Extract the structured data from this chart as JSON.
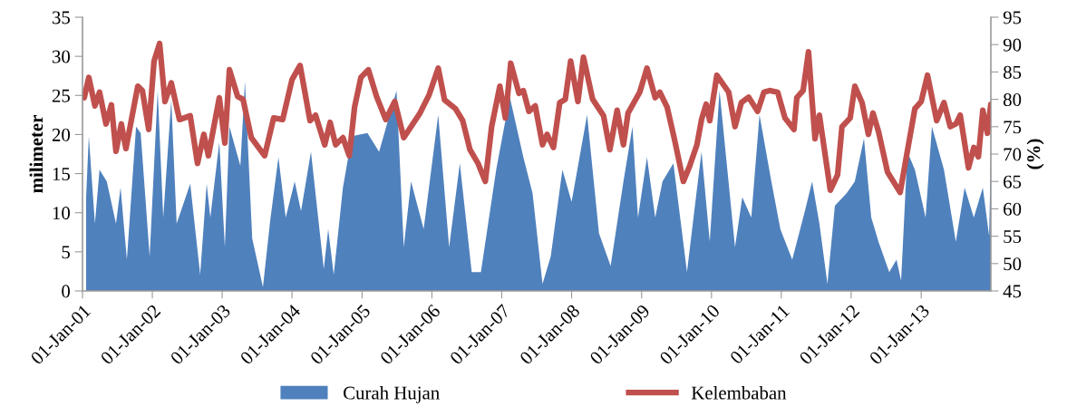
{
  "chart_data": {
    "type": "area",
    "ylabel": "milimeter",
    "y2label": "(%)",
    "xlim": [
      "2001-01-01",
      "2013-12-31"
    ],
    "ylim": [
      0,
      35
    ],
    "yticks": [
      0,
      5,
      10,
      15,
      20,
      25,
      30,
      35
    ],
    "y2lim": [
      45,
      95
    ],
    "y2ticks": [
      45,
      50,
      55,
      60,
      65,
      70,
      75,
      80,
      85,
      90,
      95
    ],
    "xticks": [
      {
        "value": "2001-01-01",
        "label": "01-Jan-01"
      },
      {
        "value": "2002-01-01",
        "label": "01-Jan-02"
      },
      {
        "value": "2003-01-01",
        "label": "01-Jan-03"
      },
      {
        "value": "2004-01-01",
        "label": "01-Jan-04"
      },
      {
        "value": "2005-01-01",
        "label": "01-Jan-05"
      },
      {
        "value": "2006-01-01",
        "label": "01-Jan-06"
      },
      {
        "value": "2007-01-01",
        "label": "01-Jan-07"
      },
      {
        "value": "2008-01-01",
        "label": "01-Jan-08"
      },
      {
        "value": "2009-01-01",
        "label": "01-Jan-09"
      },
      {
        "value": "2010-01-01",
        "label": "01-Jan-10"
      },
      {
        "value": "2011-01-01",
        "label": "01-Jan-11"
      },
      {
        "value": "2012-01-01",
        "label": "01-Jan-12"
      },
      {
        "value": "2013-01-01",
        "label": "01-Jan-13"
      }
    ],
    "legend": "bottom",
    "grid": false,
    "series": [
      {
        "name": "Curah Hujan",
        "color": "#4f81bd",
        "x": [
          "2001-01-20",
          "2001-02-03",
          "2001-03-07",
          "2001-03-31",
          "2001-05-08",
          "2001-06-25",
          "2001-07-19",
          "2001-08-21",
          "2001-10-08",
          "2001-11-01",
          "2001-12-18",
          "2002-01-29",
          "2002-02-27",
          "2002-04-10",
          "2002-05-08",
          "2002-07-18",
          "2002-09-08",
          "2002-10-12",
          "2002-10-31",
          "2002-12-17",
          "2003-01-15",
          "2003-02-08",
          "2003-04-06",
          "2003-04-30",
          "2003-06-07",
          "2003-08-02",
          "2003-09-09",
          "2003-10-22",
          "2003-11-29",
          "2004-01-15",
          "2004-02-17",
          "2004-04-09",
          "2004-06-15",
          "2004-07-08",
          "2004-08-06",
          "2004-09-23",
          "2004-11-09",
          "2005-01-29",
          "2005-03-31",
          "2005-06-30",
          "2005-08-07",
          "2005-09-14",
          "2005-11-19",
          "2006-02-03",
          "2006-04-01",
          "2006-05-27",
          "2006-07-28",
          "2006-09-14",
          "2006-12-03",
          "2007-02-12",
          "2007-04-24",
          "2007-06-11",
          "2007-08-02",
          "2007-09-14",
          "2007-11-14",
          "2008-01-01",
          "2008-03-22",
          "2008-05-23",
          "2008-07-23",
          "2008-09-28",
          "2008-11-14",
          "2008-12-13",
          "2009-01-29",
          "2009-03-13",
          "2009-04-20",
          "2009-06-16",
          "2009-08-26",
          "2009-10-12",
          "2009-11-10",
          "2009-12-23",
          "2010-02-12",
          "2010-05-04",
          "2010-06-11",
          "2010-07-28",
          "2010-09-09",
          "2010-11-10",
          "2010-12-27",
          "2011-02-27",
          "2011-05-04",
          "2011-06-11",
          "2011-07-19",
          "2011-08-30",
          "2011-10-08",
          "2011-12-08",
          "2012-01-20",
          "2012-03-08",
          "2012-04-15",
          "2012-05-23",
          "2012-07-18",
          "2012-08-25",
          "2012-09-18",
          "2012-10-21",
          "2012-11-29",
          "2013-01-24",
          "2013-02-26",
          "2013-04-30",
          "2013-07-01",
          "2013-08-16",
          "2013-10-03",
          "2013-11-19",
          "2013-12-22",
          "2013-12-31"
        ],
        "values": [
          12,
          19.8,
          8.6,
          15.5,
          14,
          8.6,
          13.2,
          4,
          21,
          20.2,
          4.4,
          25.6,
          9.4,
          24.4,
          8.6,
          13.7,
          2.1,
          13.7,
          9.4,
          19,
          5.6,
          21,
          16,
          26.8,
          6.7,
          0.5,
          9,
          17.1,
          9.4,
          14,
          10.2,
          17.8,
          2.8,
          7.9,
          2.1,
          13.2,
          19.8,
          20.2,
          17.8,
          25.6,
          5.6,
          14,
          7.9,
          22.5,
          5.6,
          16.3,
          2.4,
          2.4,
          15.5,
          24.8,
          17.1,
          12.5,
          0.9,
          4.4,
          15.5,
          11.4,
          22.5,
          7.4,
          3.2,
          14,
          21,
          9.4,
          17.1,
          9.4,
          14,
          16.3,
          2.4,
          12,
          17.8,
          6.3,
          25.6,
          5.6,
          12,
          9.4,
          22.5,
          14,
          7.9,
          4,
          10.2,
          14,
          8.6,
          0.9,
          10.9,
          12.5,
          14,
          19.5,
          9.4,
          6.3,
          2.4,
          4,
          1.3,
          17.8,
          15.5,
          9.4,
          21,
          15.5,
          6.3,
          13.2,
          9.4,
          13.2,
          7,
          17.8
        ]
      },
      {
        "name": "Kelembaban",
        "type": "line",
        "axis": "y2",
        "color": "#c0504d",
        "line_style": "solid",
        "x": [
          "2001-01-10",
          "2001-02-03",
          "2001-03-07",
          "2001-03-31",
          "2001-05-04",
          "2001-06-01",
          "2001-06-25",
          "2001-07-23",
          "2001-08-16",
          "2001-10-17",
          "2001-11-10",
          "2001-12-13",
          "2002-01-10",
          "2002-02-08",
          "2002-03-08",
          "2002-04-10",
          "2002-05-23",
          "2002-07-18",
          "2002-08-25",
          "2002-09-27",
          "2002-10-21",
          "2002-12-17",
          "2003-01-15",
          "2003-02-08",
          "2003-03-23",
          "2003-04-20",
          "2003-06-02",
          "2003-08-11",
          "2003-09-27",
          "2003-11-13",
          "2004-01-01",
          "2004-02-12",
          "2004-04-04",
          "2004-05-03",
          "2004-06-20",
          "2004-07-18",
          "2004-08-16",
          "2004-09-23",
          "2004-10-26",
          "2004-11-23",
          "2004-12-26",
          "2005-02-03",
          "2005-03-18",
          "2005-05-05",
          "2005-06-21",
          "2005-08-07",
          "2005-09-14",
          "2005-10-31",
          "2005-12-17",
          "2006-02-03",
          "2006-03-08",
          "2006-05-04",
          "2006-06-11",
          "2006-07-19",
          "2006-08-30",
          "2006-10-07",
          "2006-11-09",
          "2006-12-22",
          "2007-01-20",
          "2007-02-17",
          "2007-04-01",
          "2007-04-24",
          "2007-05-23",
          "2007-06-25",
          "2007-08-02",
          "2007-08-26",
          "2007-09-28",
          "2007-10-31",
          "2007-11-29",
          "2007-12-27",
          "2008-02-03",
          "2008-03-03",
          "2008-04-20",
          "2008-06-16",
          "2008-07-19",
          "2008-08-26",
          "2008-09-28",
          "2008-10-22",
          "2008-12-22",
          "2009-01-29",
          "2009-03-13",
          "2009-04-06",
          "2009-05-14",
          "2009-06-21",
          "2009-08-07",
          "2009-09-09",
          "2009-10-17",
          "2009-11-10",
          "2009-12-04",
          "2009-12-23",
          "2010-01-29",
          "2010-04-01",
          "2010-05-04",
          "2010-06-06",
          "2010-07-14",
          "2010-08-30",
          "2010-10-02",
          "2010-10-31",
          "2010-12-13",
          "2011-01-20",
          "2011-03-08",
          "2011-03-23",
          "2011-04-25",
          "2011-05-23",
          "2011-06-26",
          "2011-07-19",
          "2011-09-14",
          "2011-10-22",
          "2011-11-14",
          "2011-12-27",
          "2012-01-20",
          "2012-02-27",
          "2012-03-31",
          "2012-04-24",
          "2012-05-23",
          "2012-07-09",
          "2012-09-13",
          "2012-10-12",
          "2012-11-29",
          "2013-01-01",
          "2013-02-03",
          "2013-03-23",
          "2013-04-30",
          "2013-06-02",
          "2013-07-01",
          "2013-07-24",
          "2013-09-05",
          "2013-10-03",
          "2013-10-27",
          "2013-11-19",
          "2013-12-13",
          "2013-12-31"
        ],
        "values": [
          80.3,
          84,
          78.8,
          81.3,
          75.5,
          79,
          70.5,
          75.5,
          71,
          82.4,
          81.6,
          74.5,
          87,
          90.2,
          79.6,
          83,
          76.3,
          77,
          68.3,
          73.6,
          69.7,
          80.3,
          72,
          85.4,
          80.5,
          80,
          73,
          69.7,
          76.6,
          76.3,
          83.6,
          86.2,
          76.1,
          77.1,
          71.7,
          75.8,
          71.7,
          73,
          69.7,
          78.6,
          84,
          85.4,
          80.5,
          76.3,
          79.6,
          73,
          75,
          77.5,
          80.8,
          85.7,
          79.9,
          78.3,
          76.1,
          70.8,
          68.3,
          65,
          75,
          82.4,
          76.6,
          86.6,
          81.1,
          81.6,
          77.8,
          78.8,
          71.7,
          73.6,
          71.2,
          79.4,
          80,
          87,
          79.6,
          87.7,
          80,
          77,
          70.8,
          78,
          71.7,
          77.5,
          81.3,
          85.7,
          80.3,
          81.3,
          78.6,
          72.8,
          65,
          67.8,
          71.7,
          76.3,
          79.1,
          76.1,
          84.4,
          81.3,
          75,
          79.4,
          80.4,
          77.8,
          81.3,
          81.6,
          81.3,
          76.6,
          74.5,
          80.3,
          81.6,
          88.7,
          72.8,
          77.1,
          63.4,
          66.2,
          75,
          76.6,
          82.4,
          79.4,
          73.6,
          77.5,
          74.1,
          66.7,
          63,
          68.8,
          78.3,
          79.6,
          84.4,
          76.1,
          79.4,
          75,
          75.5,
          77.1,
          67.5,
          71.2,
          69.5,
          78,
          73.8,
          79.1
        ]
      }
    ]
  }
}
